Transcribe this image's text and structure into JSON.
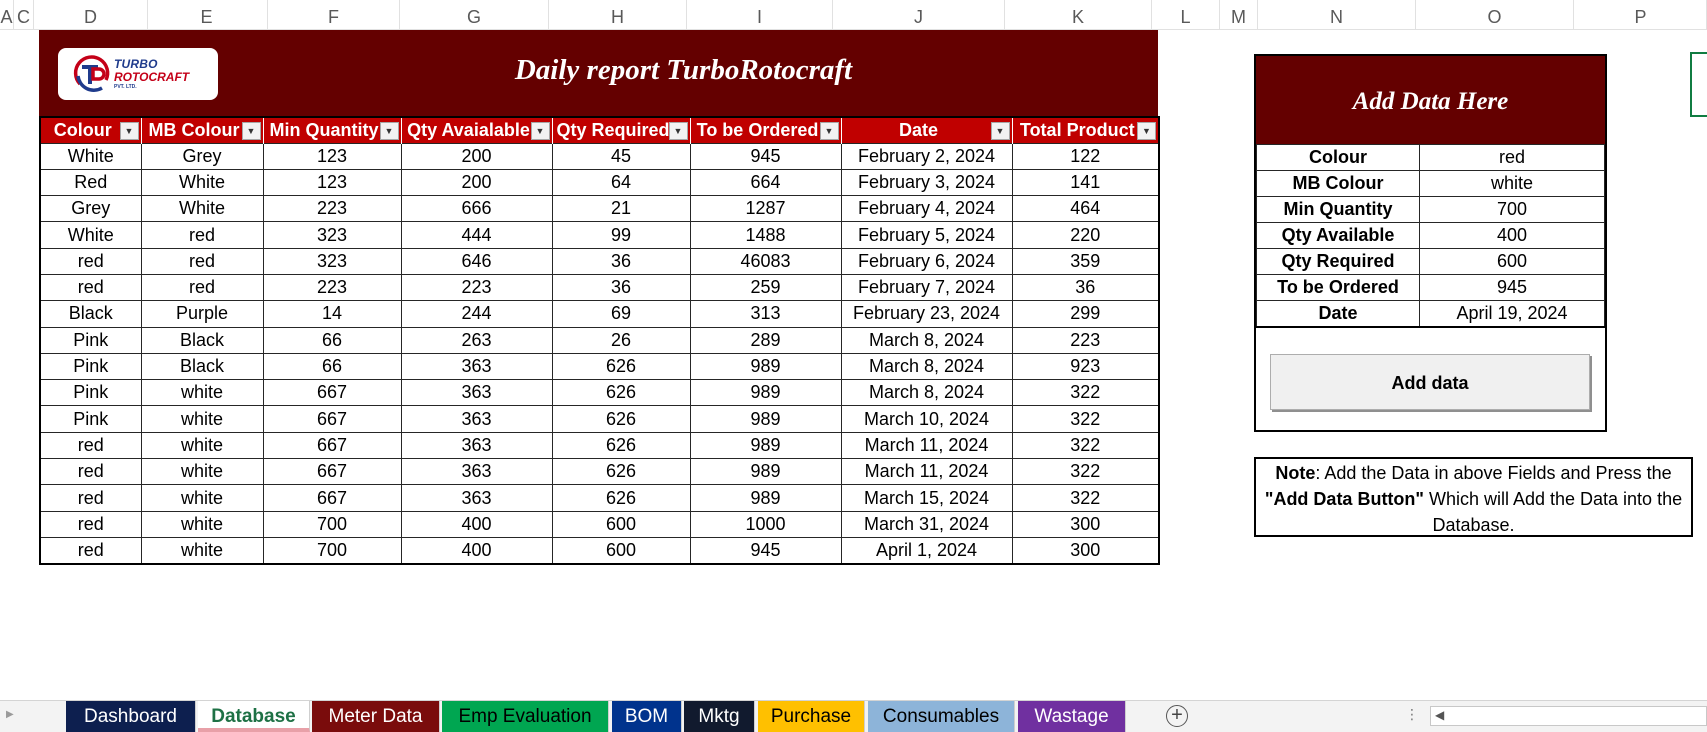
{
  "columns": [
    "A",
    "C",
    "D",
    "E",
    "F",
    "G",
    "H",
    "I",
    "J",
    "K",
    "L",
    "M",
    "N",
    "O",
    "P"
  ],
  "report": {
    "title": "Daily report TurboRotocraft",
    "logo": {
      "line1": "TURBO",
      "line2": "ROTOCRAFT",
      "line3": "PVT. LTD."
    },
    "headers": [
      "Colour",
      "MB Colour",
      "Min Quantity",
      "Qty Avaialable",
      "Qty Required",
      "To be Ordered",
      "Date",
      "Total Product"
    ],
    "rows": [
      [
        "White",
        "Grey",
        "123",
        "200",
        "45",
        "945",
        "February 2, 2024",
        "122"
      ],
      [
        "Red",
        "White",
        "123",
        "200",
        "64",
        "664",
        "February 3, 2024",
        "141"
      ],
      [
        "Grey",
        "White",
        "223",
        "666",
        "21",
        "1287",
        "February 4, 2024",
        "464"
      ],
      [
        "White",
        "red",
        "323",
        "444",
        "99",
        "1488",
        "February 5, 2024",
        "220"
      ],
      [
        "red",
        "red",
        "323",
        "646",
        "36",
        "46083",
        "February 6, 2024",
        "359"
      ],
      [
        "red",
        "red",
        "223",
        "223",
        "36",
        "259",
        "February 7, 2024",
        "36"
      ],
      [
        "Black",
        "Purple",
        "14",
        "244",
        "69",
        "313",
        "February 23, 2024",
        "299"
      ],
      [
        "Pink",
        "Black",
        "66",
        "263",
        "26",
        "289",
        "March 8, 2024",
        "223"
      ],
      [
        "Pink",
        "Black",
        "66",
        "363",
        "626",
        "989",
        "March 8, 2024",
        "923"
      ],
      [
        "Pink",
        "white",
        "667",
        "363",
        "626",
        "989",
        "March 8, 2024",
        "322"
      ],
      [
        "Pink",
        "white",
        "667",
        "363",
        "626",
        "989",
        "March 10, 2024",
        "322"
      ],
      [
        "red",
        "white",
        "667",
        "363",
        "626",
        "989",
        "March 11, 2024",
        "322"
      ],
      [
        "red",
        "white",
        "667",
        "363",
        "626",
        "989",
        "March 11, 2024",
        "322"
      ],
      [
        "red",
        "white",
        "667",
        "363",
        "626",
        "989",
        "March 15, 2024",
        "322"
      ],
      [
        "red",
        "white",
        "700",
        "400",
        "600",
        "1000",
        "March 31, 2024",
        "300"
      ],
      [
        "red",
        "white",
        "700",
        "400",
        "600",
        "945",
        "April 1, 2024",
        "300"
      ]
    ]
  },
  "form": {
    "title": "Add Data Here",
    "fields": [
      {
        "label": "Colour",
        "value": "red"
      },
      {
        "label": "MB Colour",
        "value": "white"
      },
      {
        "label": "Min Quantity",
        "value": "700"
      },
      {
        "label": "Qty Available",
        "value": "400"
      },
      {
        "label": "Qty Required",
        "value": "600"
      },
      {
        "label": "To be Ordered",
        "value": "945"
      },
      {
        "label": "Date",
        "value": "April 19, 2024"
      }
    ],
    "button": "Add data"
  },
  "note": {
    "lead": "Note",
    "part1": ": Add the Data in above Fields and Press the ",
    "bold": "\"Add Data Button\"",
    "part2": " Which will Add the Data into the Database."
  },
  "tabs": [
    {
      "label": "Dashboard",
      "color": "#0d1f4f",
      "active": false
    },
    {
      "label": "Database",
      "color": "#e8a0a8",
      "active": true
    },
    {
      "label": "Meter Data",
      "color": "#7a0c0c",
      "active": false
    },
    {
      "label": "Emp Evaluation",
      "color": "#00a651",
      "active": false
    },
    {
      "label": "BOM",
      "color": "#00338d",
      "active": false
    },
    {
      "label": "Mktg",
      "color": "#111a2e",
      "active": false
    },
    {
      "label": "Purchase",
      "color": "#ffc000",
      "active": false
    },
    {
      "label": "Consumables",
      "color": "#8db4d9",
      "active": false
    },
    {
      "label": "Wastage",
      "color": "#7030a0",
      "active": false
    }
  ],
  "colors": {
    "banner": "#640000",
    "header": "#c00000"
  }
}
